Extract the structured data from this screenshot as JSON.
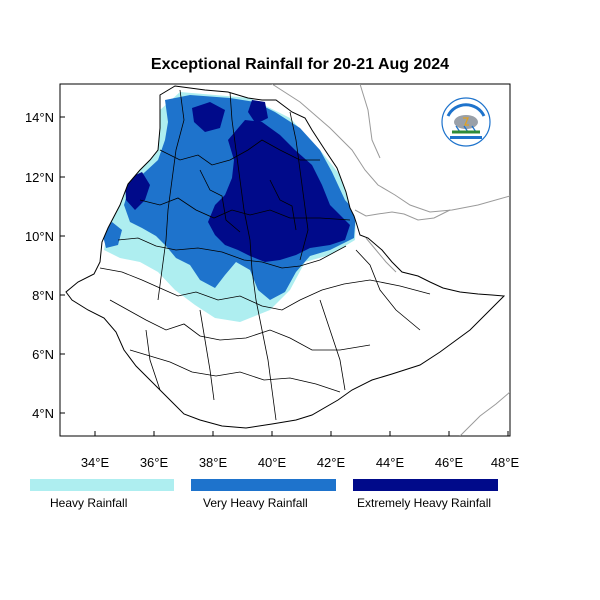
{
  "title": "Exceptional Rainfall for 20-21 Aug 2024",
  "axes": {
    "x_ticks": [
      "34°E",
      "36°E",
      "38°E",
      "40°E",
      "42°E",
      "44°E",
      "46°E",
      "48°E"
    ],
    "y_ticks": [
      "14°N",
      "12°N",
      "10°N",
      "8°N",
      "6°N",
      "4°N"
    ]
  },
  "legend": [
    {
      "label": "Heavy Rainfall",
      "color": "#aeeef0"
    },
    {
      "label": "Very Heavy Rainfall",
      "color": "#1e73cc"
    },
    {
      "label": "Extremely Heavy Rainfall",
      "color": "#000a8a"
    }
  ],
  "colors": {
    "heavy": "#aeeef0",
    "very_heavy": "#1e73cc",
    "extreme": "#000a8a",
    "border": "#000000",
    "neighbor_border": "#9a9a9a"
  },
  "logo": {
    "icon": "meteorology-agency-logo"
  }
}
